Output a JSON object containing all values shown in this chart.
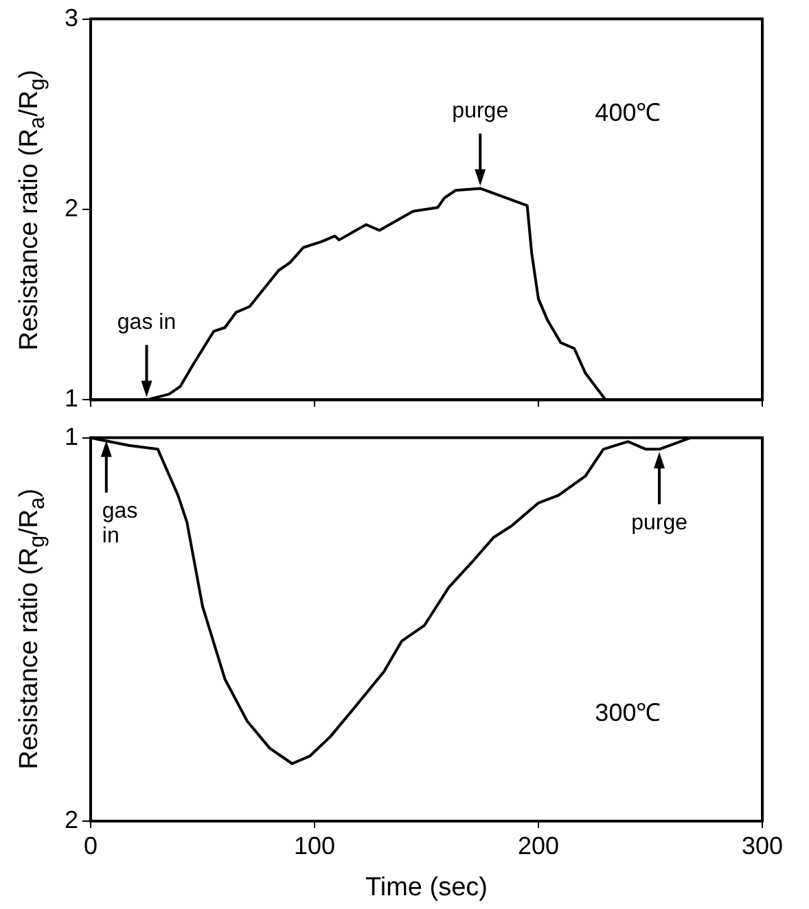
{
  "chart_data": [
    {
      "type": "line",
      "ylabel": "Resistance ratio (R$_{a}$/R$_{g}$)",
      "color": "#000000",
      "marker": "none",
      "grid": false,
      "legend": false,
      "tick_labels": "y",
      "x": [
        0,
        25,
        35,
        40,
        46,
        55,
        60,
        65,
        71,
        84,
        89,
        95,
        103,
        109,
        111,
        117,
        123,
        129,
        144,
        155,
        158,
        163,
        174,
        195,
        197,
        200,
        204,
        210,
        216,
        221,
        230,
        300
      ],
      "values": [
        1,
        1,
        1.03,
        1.07,
        1.19,
        1.36,
        1.38,
        1.46,
        1.49,
        1.68,
        1.72,
        1.8,
        1.83,
        1.86,
        1.84,
        1.88,
        1.92,
        1.89,
        1.99,
        2.01,
        2.06,
        2.1,
        2.11,
        2.02,
        1.77,
        1.53,
        1.42,
        1.3,
        1.27,
        1.14,
        1,
        1
      ],
      "xlim": [
        0,
        300
      ],
      "xticks": [
        0,
        100,
        200,
        300
      ],
      "ylim": [
        1,
        3
      ],
      "yticks": [
        1,
        2,
        3
      ],
      "annotations": [
        {
          "text": "gas in",
          "x": 25,
          "y": 1
        },
        {
          "text": "purge",
          "x": 174,
          "y": 2.11
        },
        "400℃"
      ]
    },
    {
      "type": "line",
      "xlabel": "Time (sec)",
      "ylabel": "Resistance ratio (R$_{g}$/R$_{a}$)",
      "color": "#000000",
      "marker": "none",
      "grid": false,
      "legend": false,
      "x": [
        0,
        17,
        30,
        39,
        43,
        50,
        60,
        70,
        80,
        90,
        98,
        107,
        117,
        131,
        139,
        149,
        160,
        171,
        180,
        188,
        200,
        209,
        221,
        229,
        240,
        248,
        254,
        268,
        300
      ],
      "values": [
        1,
        1.02,
        1.03,
        1.15,
        1.22,
        1.44,
        1.63,
        1.74,
        1.81,
        1.85,
        1.83,
        1.78,
        1.71,
        1.61,
        1.53,
        1.49,
        1.39,
        1.32,
        1.26,
        1.23,
        1.17,
        1.15,
        1.1,
        1.03,
        1.01,
        1.03,
        1.03,
        1,
        1
      ],
      "xlim": [
        0,
        300
      ],
      "xticks": [
        0,
        100,
        200,
        300
      ],
      "ylim": [
        2,
        1
      ],
      "yticks": [
        1,
        2
      ],
      "annotations": [
        {
          "text": "gas in",
          "x": 7,
          "y": 1
        },
        {
          "text": "purge",
          "x": 254,
          "y": 1.03
        },
        "300℃"
      ]
    }
  ]
}
